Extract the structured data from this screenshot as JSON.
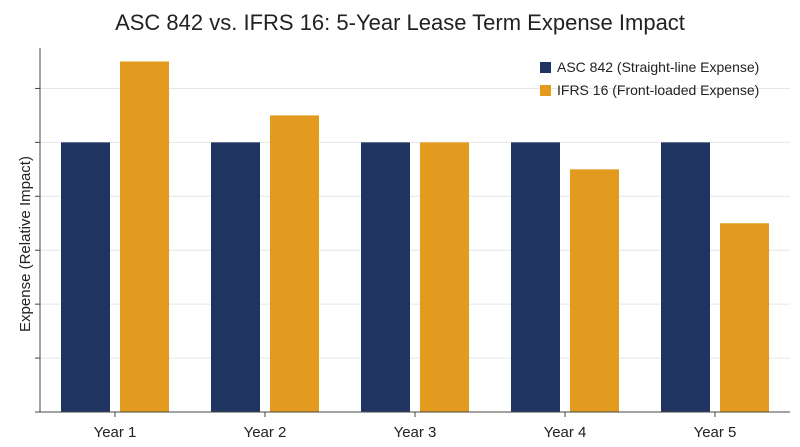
{
  "chart_data": {
    "type": "bar",
    "title": "ASC 842 vs. IFRS 16: 5-Year Lease Term Expense Impact",
    "xlabel": "",
    "ylabel": "Expense (Relative Impact)",
    "categories": [
      "Year 1",
      "Year 2",
      "Year 3",
      "Year 4",
      "Year 5"
    ],
    "series": [
      {
        "name": "ASC 842 (Straight-line Expense)",
        "color": "#1f3461",
        "values": [
          100,
          100,
          100,
          100,
          100
        ]
      },
      {
        "name": "IFRS 16 (Front-loaded Expense)",
        "color": "#e29b1f",
        "values": [
          130,
          110,
          100,
          90,
          70
        ]
      }
    ],
    "ylim": [
      0,
      135
    ],
    "y_ticks": [
      0,
      20,
      40,
      60,
      80,
      100,
      120
    ],
    "y_tick_labels_visible": false,
    "grid": "horizontal",
    "legend_position": "top-right"
  }
}
